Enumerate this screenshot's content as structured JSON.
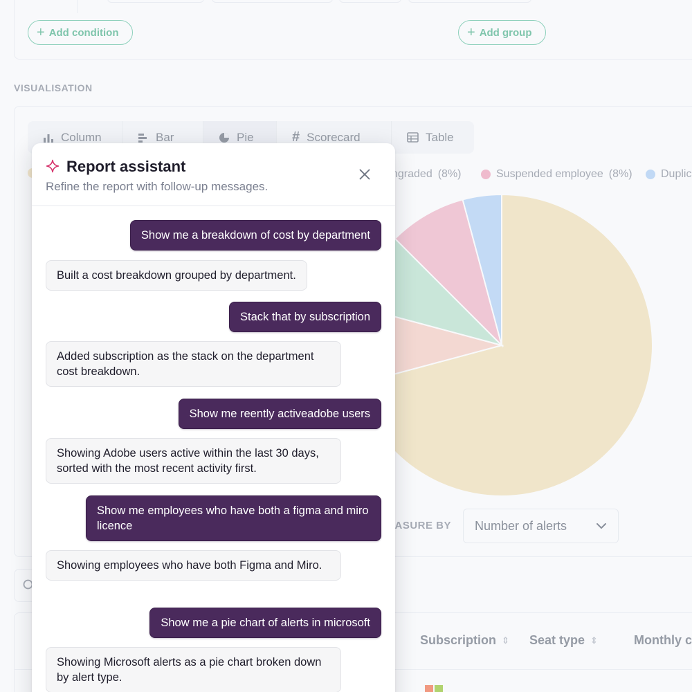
{
  "filters": {
    "add_condition": "Add condition",
    "add_group": "Add group"
  },
  "visualisation": {
    "section_label": "VISUALISATION",
    "tabs": [
      {
        "label": "Column",
        "icon": "column-chart-icon"
      },
      {
        "label": "Bar",
        "icon": "bar-chart-icon"
      },
      {
        "label": "Pie",
        "icon": "pie-chart-icon"
      },
      {
        "label": "Scorecard",
        "icon": "hash-icon"
      },
      {
        "label": "Table",
        "icon": "table-icon"
      }
    ],
    "active_tab": "Pie",
    "legend": [
      {
        "label": "ngraded",
        "pct": "(8%)",
        "color": "#f2a2b4"
      },
      {
        "label": "Suspended employee",
        "pct": "(8%)",
        "color": "#ee8fab"
      },
      {
        "label": "Duplic",
        "pct": "",
        "color": "#9cc5f4"
      }
    ],
    "measure_label": "EASURE BY",
    "measure_value": "Number of alerts"
  },
  "chart_data": {
    "type": "pie",
    "slices": [
      {
        "value": 68,
        "color": "#f1dba6"
      },
      {
        "value": 8,
        "color": "#f6c4b4"
      },
      {
        "value": 8,
        "color": "#a9ddc2"
      },
      {
        "value": 8,
        "color": "#eea5bb"
      },
      {
        "value": 4,
        "color": "#9fc7f4"
      }
    ]
  },
  "table": {
    "columns": [
      "Subscription",
      "Seat type",
      "Monthly c"
    ]
  },
  "assistant": {
    "title": "Report assistant",
    "subtitle": "Refine the report with follow-up messages.",
    "messages": [
      {
        "role": "user",
        "text": "Show me a breakdown of cost by department"
      },
      {
        "role": "bot",
        "text": "Built a cost breakdown grouped by department."
      },
      {
        "role": "user",
        "text": "Stack that by subscription"
      },
      {
        "role": "bot",
        "text": "Added subscription as the stack on the department cost breakdown."
      },
      {
        "role": "user",
        "text": "Show me reently activeadobe users"
      },
      {
        "role": "bot",
        "text": "Showing Adobe users active within the last 30 days, sorted with the most recent activity first."
      },
      {
        "role": "user",
        "text": "Show me employees who have both a figma and miro licence"
      },
      {
        "role": "bot",
        "text": "Showing employees who have both Figma and Miro."
      },
      {
        "role": "user",
        "text": "Show me a pie chart of alerts in microsoft"
      },
      {
        "role": "bot",
        "text": "Showing Microsoft alerts as a pie chart broken down by alert type."
      }
    ]
  }
}
